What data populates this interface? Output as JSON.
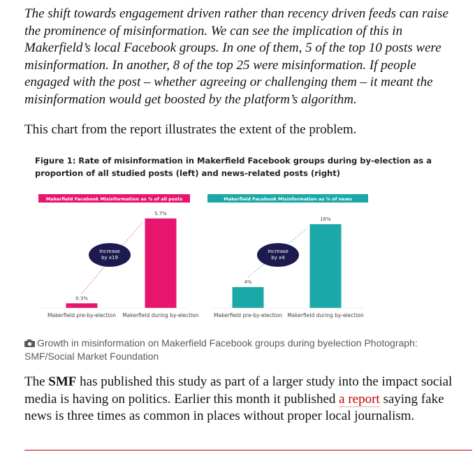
{
  "article": {
    "paragraph1": "The shift towards engagement driven rather than recency driven feeds can raise the prominence of misinformation. We can see the implication of this in Makerfield’s local Facebook groups. In one of them, 5 of the top 10 posts were misinformation. In another, 8 of the top 25 were misinformation. If people engaged with the post – whether agreeing or challenging them – it meant the misinformation would get boosted by the platform’s algorithm.",
    "paragraph2": "This chart from the report illustrates the extent of the problem.",
    "paragraph3": [
      "The ",
      "SMF",
      " has published this study as part of a larger study into the impact social media is having on politics. Earlier this month it published ",
      "a report",
      " saying fake news is three times as common in places without proper local journalism."
    ]
  },
  "figure": {
    "title": "Figure 1: Rate of misinformation in Makerfield Facebook groups during by-election as a proportion of all studied posts (left) and news-related posts (right)",
    "caption": "Growth in misinformation on Makerfield Facebook groups during byelection Photograph: SMF/Social Market Foundation"
  },
  "chart_data": [
    {
      "type": "bar",
      "title": "Makerfield Facebook Misinformation as % of all posts",
      "categories": [
        "Makerfield pre-by-election",
        "Makerfield during by-election"
      ],
      "values": [
        0.3,
        5.7
      ],
      "value_labels": [
        "0.3%",
        "5.7%"
      ],
      "color": "#e8156e",
      "ylim": [
        0,
        6
      ],
      "annotation": [
        "Increase",
        "by x19"
      ]
    },
    {
      "type": "bar",
      "title": "Makerfield Facebook Misinformation as % of news",
      "categories": [
        "Makerfield pre-by-election",
        "Makerfield during by-election"
      ],
      "values": [
        4,
        16
      ],
      "value_labels": [
        "4%",
        "16%"
      ],
      "color": "#1aa8a8",
      "ylim": [
        0,
        18
      ],
      "annotation": [
        "Increase",
        "by x4"
      ]
    }
  ]
}
